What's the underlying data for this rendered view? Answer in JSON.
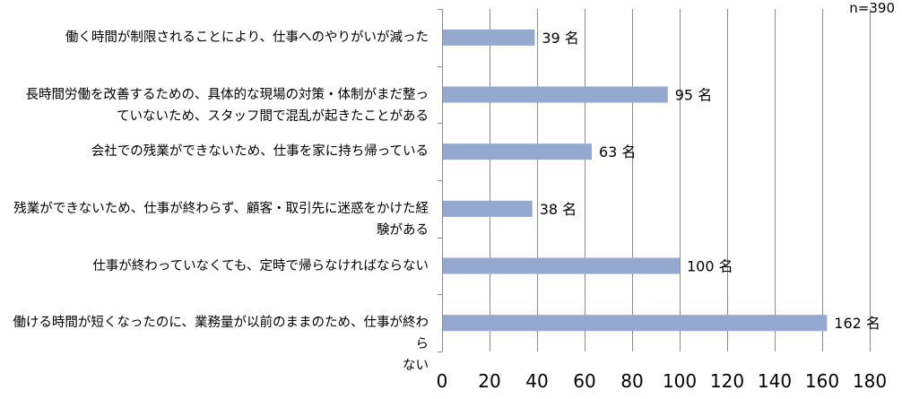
{
  "chart_data": {
    "type": "bar",
    "orientation": "horizontal",
    "note": "n=390",
    "categories": [
      "働く時間が制限されることにより、仕事へのやりがいが減った",
      "長時間労働を改善するための、具体的な現場の対策・体制がまだ整っていないため、スタッフ間で混乱が起きたことがある",
      "会社での残業ができないため、仕事を家に持ち帰っている",
      "残業ができないため、仕事が終わらず、顧客・取引先に迷惑をかけた経験がある",
      "仕事が終わっていなくても、定時で帰らなければならない",
      "働ける時間が短くなったのに、業務量が以前のままのため、仕事が終わらない"
    ],
    "category_lines": [
      [
        "働く時間が制限されることにより、仕事へのやりがいが減った"
      ],
      [
        "長時間労働を改善するための、具体的な現場の対策・体制がまだ整っ",
        "ていないため、スタッフ間で混乱が起きたことがある"
      ],
      [
        "会社での残業ができないため、仕事を家に持ち帰っている"
      ],
      [
        "残業ができないため、仕事が終わらず、顧客・取引先に迷惑をかけた経",
        "験がある"
      ],
      [
        "仕事が終わっていなくても、定時で帰らなければならない"
      ],
      [
        "働ける時間が短くなったのに、業務量が以前のままのため、仕事が終わら",
        "ない"
      ]
    ],
    "values": [
      39,
      95,
      63,
      38,
      100,
      162
    ],
    "data_labels": [
      "39 名",
      "95 名",
      "63 名",
      "38 名",
      "100 名",
      "162 名"
    ],
    "xlim": [
      0,
      180
    ],
    "xticks": [
      0,
      20,
      40,
      60,
      80,
      100,
      120,
      140,
      160,
      180
    ],
    "grid": true,
    "bar_color": "#95A8CF",
    "grid_color": "#8C8C8C"
  }
}
